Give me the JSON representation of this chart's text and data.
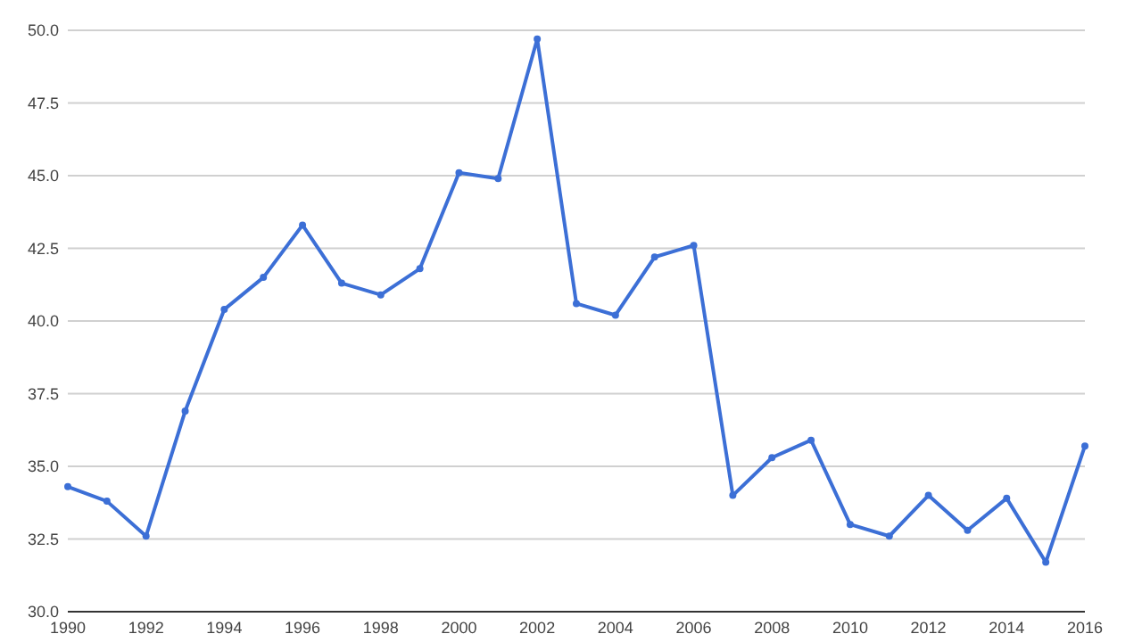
{
  "chart_data": {
    "type": "line",
    "x": [
      1990,
      1991,
      1992,
      1993,
      1994,
      1995,
      1996,
      1997,
      1998,
      1999,
      2000,
      2001,
      2002,
      2003,
      2004,
      2005,
      2006,
      2007,
      2008,
      2009,
      2010,
      2011,
      2012,
      2013,
      2014,
      2015,
      2016
    ],
    "series": [
      {
        "color": "#3c6fd6",
        "values": [
          34.3,
          33.8,
          32.6,
          36.9,
          40.4,
          41.5,
          43.3,
          41.3,
          40.9,
          41.8,
          45.1,
          44.9,
          49.7,
          40.6,
          40.2,
          42.2,
          42.6,
          34.0,
          35.3,
          35.9,
          33.0,
          32.6,
          34.0,
          32.8,
          33.9,
          31.7,
          35.7
        ]
      }
    ],
    "xlim": [
      1990,
      2016
    ],
    "xticks": [
      1990,
      1992,
      1994,
      1996,
      1998,
      2000,
      2002,
      2004,
      2006,
      2008,
      2010,
      2012,
      2014,
      2016
    ],
    "ylim": [
      30,
      50
    ],
    "yticks": [
      {
        "value": 30,
        "label": "30.0"
      },
      {
        "value": 32.5,
        "label": "32.5"
      },
      {
        "value": 35,
        "label": "35.0"
      },
      {
        "value": 37.5,
        "label": "37.5"
      },
      {
        "value": 40,
        "label": "40.0"
      },
      {
        "value": 42.5,
        "label": "42.5"
      },
      {
        "value": 45,
        "label": "45.0"
      },
      {
        "value": 47.5,
        "label": "47.5"
      },
      {
        "value": 50,
        "label": "50.0"
      }
    ],
    "grid": "y",
    "marker": "circle",
    "line_style": "solid"
  }
}
